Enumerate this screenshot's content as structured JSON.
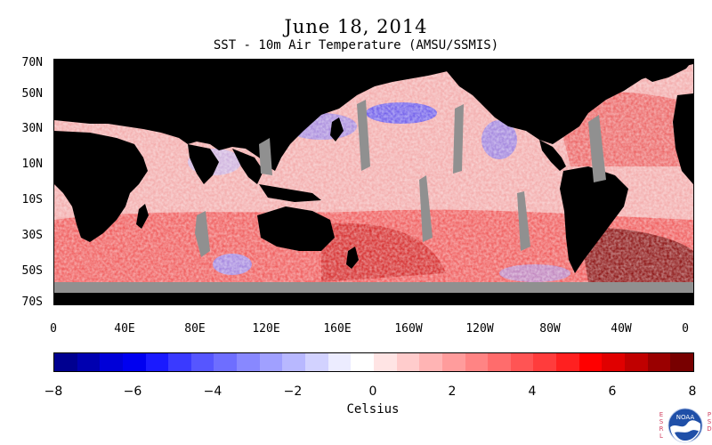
{
  "title": "June 18, 2014",
  "subtitle": "SST - 10m Air Temperature (AMSU/SSMIS)",
  "map": {
    "lat_ticks": [
      "70N",
      "50N",
      "30N",
      "10N",
      "10S",
      "30S",
      "50S",
      "70S"
    ],
    "lon_ticks": [
      "0",
      "40E",
      "80E",
      "120E",
      "160E",
      "160W",
      "120W",
      "80W",
      "40W",
      "0"
    ],
    "colors": {
      "land": "#000000",
      "missing": "#909090",
      "ocean_base": "#f2a6a6"
    }
  },
  "colorbar": {
    "title": "Celsius",
    "tick_labels": [
      "−8",
      "−6",
      "−4",
      "−2",
      "0",
      "2",
      "4",
      "6",
      "8"
    ],
    "range": [
      -8,
      8
    ],
    "colors": [
      "#000090",
      "#0000b0",
      "#0000d8",
      "#0000f0",
      "#1a1aff",
      "#3a3aff",
      "#5656ff",
      "#6e6eff",
      "#8888ff",
      "#a0a0ff",
      "#b8b8ff",
      "#d2d2ff",
      "#ececff",
      "#ffffff",
      "#ffe4e4",
      "#ffcccc",
      "#ffb4b4",
      "#ff9c9c",
      "#ff8484",
      "#ff6c6c",
      "#ff5454",
      "#ff3c3c",
      "#ff2020",
      "#ff0000",
      "#e00000",
      "#c00000",
      "#9a0000",
      "#780000"
    ]
  },
  "organization": {
    "left_letters": "ESRL",
    "right_letters": "PSD",
    "logo_text": "NOAA"
  }
}
